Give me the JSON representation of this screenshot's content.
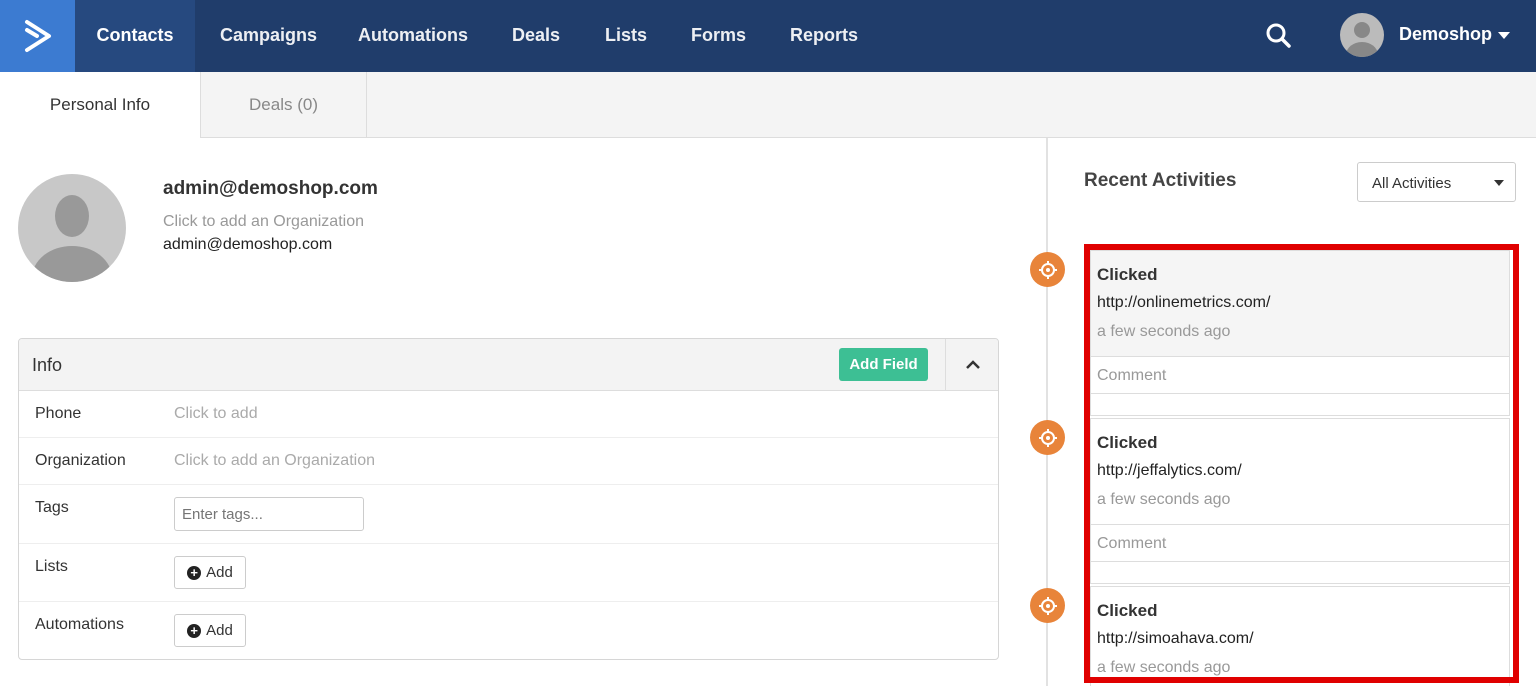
{
  "nav": {
    "items": [
      "Contacts",
      "Campaigns",
      "Automations",
      "Deals",
      "Lists",
      "Forms",
      "Reports"
    ],
    "active": "Contacts",
    "user": "Demoshop"
  },
  "tabs": {
    "personal": "Personal Info",
    "deals": "Deals (0)"
  },
  "contact": {
    "email": "admin@demoshop.com",
    "org_placeholder": "Click to add an Organization",
    "email2": "admin@demoshop.com"
  },
  "info": {
    "title": "Info",
    "add_field": "Add Field",
    "phone_label": "Phone",
    "phone_value": "Click to add",
    "org_label": "Organization",
    "org_value": "Click to add an Organization",
    "tags_label": "Tags",
    "tags_placeholder": "Enter tags...",
    "lists_label": "Lists",
    "automations_label": "Automations",
    "add": "Add"
  },
  "activities": {
    "title": "Recent Activities",
    "filter": "All Activities",
    "comment": "Comment",
    "items": [
      {
        "action": "Clicked",
        "url": "http://onlinemetrics.com/",
        "time": "a few seconds ago"
      },
      {
        "action": "Clicked",
        "url": "http://jeffalytics.com/",
        "time": "a few seconds ago"
      },
      {
        "action": "Clicked",
        "url": "http://simoahava.com/",
        "time": "a few seconds ago"
      }
    ]
  },
  "colors": {
    "nav": "#203d6b",
    "logo": "#3c7bd1",
    "accent_green": "#3dbf94",
    "activity_orange": "#e8843a",
    "highlight_red": "#e00000"
  }
}
